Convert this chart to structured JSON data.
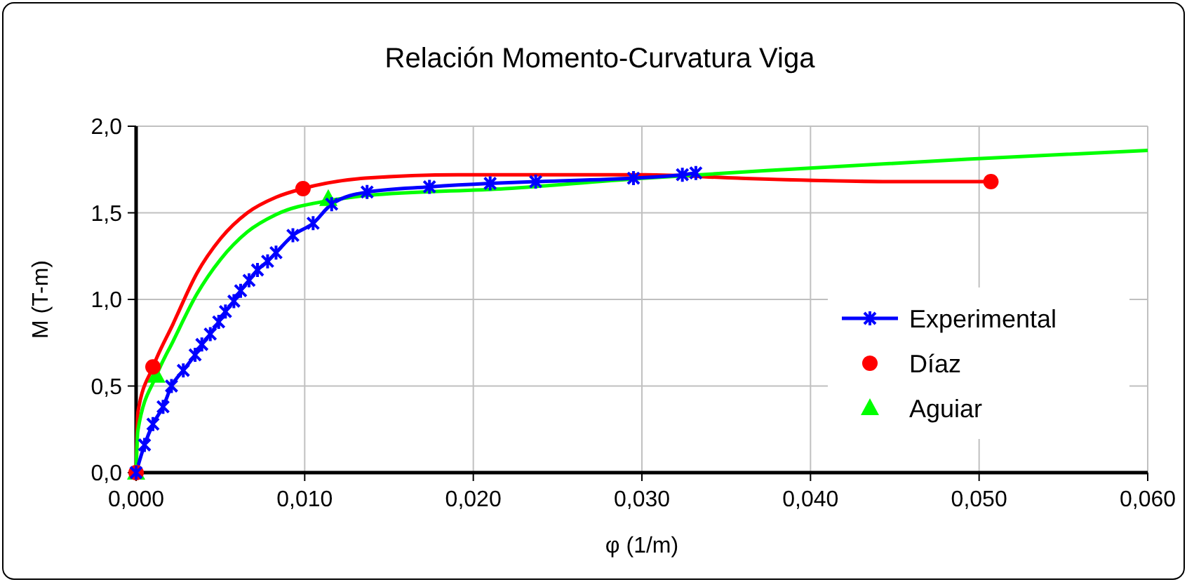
{
  "chart_data": {
    "type": "line",
    "title": "Relación Momento-Curvatura Viga",
    "xlabel": "φ   (1/m)",
    "ylabel": "M   (T-m)",
    "xlim": [
      0,
      0.06
    ],
    "xticks": [
      {
        "value": 0,
        "label": "0,000"
      },
      {
        "value": 0.01,
        "label": "0,010"
      },
      {
        "value": 0.02,
        "label": "0,020"
      },
      {
        "value": 0.03,
        "label": "0,030"
      },
      {
        "value": 0.04,
        "label": "0,040"
      },
      {
        "value": 0.05,
        "label": "0,050"
      },
      {
        "value": 0.06,
        "label": "0,060"
      }
    ],
    "ylim": [
      0,
      2
    ],
    "yticks": [
      {
        "value": 0,
        "label": "0,0"
      },
      {
        "value": 0.5,
        "label": "0,5"
      },
      {
        "value": 1,
        "label": "1,0"
      },
      {
        "value": 1.5,
        "label": "1,5"
      },
      {
        "value": 2,
        "label": "2,0"
      }
    ],
    "grid": true,
    "legend": "right",
    "series": [
      {
        "color": "#ff0000",
        "marker": "none",
        "x": [
          0,
          0.00011,
          0.001,
          0.0022,
          0.0036,
          0.005,
          0.0066,
          0.0083,
          0.0099,
          0.0136,
          0.0191,
          0.0246,
          0.0302,
          0.0357,
          0.0452,
          0.0507
        ],
        "values": [
          0,
          0.35,
          0.61,
          0.86,
          1.15,
          1.35,
          1.5,
          1.59,
          1.64,
          1.7,
          1.72,
          1.72,
          1.72,
          1.7,
          1.68,
          1.68
        ]
      },
      {
        "color": "#00ff00",
        "marker": "none",
        "x": [
          0,
          0.0001,
          0.0012,
          0.0022,
          0.0036,
          0.005,
          0.0066,
          0.0083,
          0.0114,
          0.0137,
          0.0219,
          0.0302,
          0.0385,
          0.0493,
          0.06
        ],
        "values": [
          0,
          0.24,
          0.56,
          0.76,
          1.03,
          1.23,
          1.39,
          1.49,
          1.57,
          1.6,
          1.64,
          1.7,
          1.75,
          1.81,
          1.86
        ]
      },
      {
        "name": "Experimental",
        "color": "#0000ff",
        "marker": "cross",
        "x": [
          0,
          0.0005,
          0.001,
          0.0016,
          0.0021,
          0.0028,
          0.0035,
          0.0039,
          0.0044,
          0.0049,
          0.0053,
          0.0058,
          0.0062,
          0.0067,
          0.0072,
          0.0078,
          0.0083,
          0.0093,
          0.0105,
          0.0116,
          0.0137,
          0.0174,
          0.021,
          0.0237,
          0.0295,
          0.0324,
          0.0332
        ],
        "values": [
          0,
          0.16,
          0.28,
          0.38,
          0.5,
          0.59,
          0.68,
          0.74,
          0.8,
          0.87,
          0.93,
          0.99,
          1.05,
          1.11,
          1.17,
          1.22,
          1.27,
          1.37,
          1.44,
          1.55,
          1.62,
          1.65,
          1.67,
          1.68,
          1.7,
          1.72,
          1.73
        ]
      },
      {
        "type": "scatter",
        "name": "Díaz",
        "color": "#ff0000",
        "marker": "circle",
        "x": [
          0,
          0.001,
          0.0099,
          0.0507
        ],
        "values": [
          0,
          0.61,
          1.64,
          1.68
        ]
      },
      {
        "type": "scatter",
        "name": "Aguiar",
        "color": "#00ff00",
        "marker": "triangle",
        "x": [
          0,
          0.0012,
          0.0114
        ],
        "values": [
          0,
          0.56,
          1.58
        ]
      }
    ]
  }
}
